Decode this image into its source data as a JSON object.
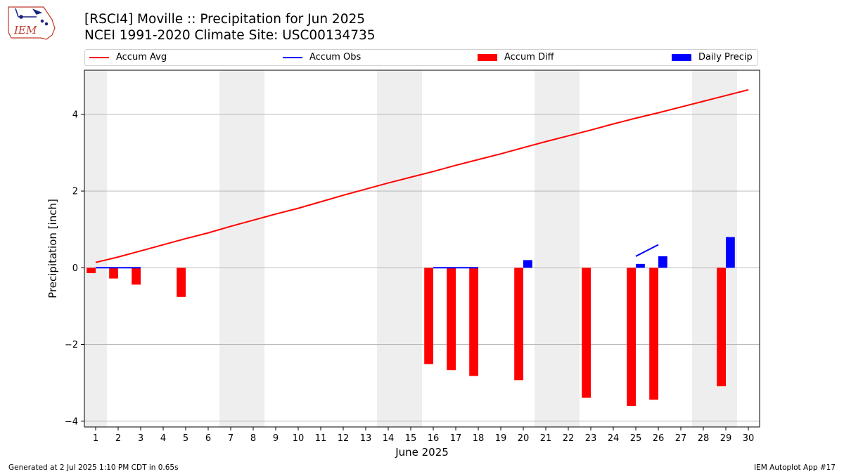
{
  "logo": {
    "text": "IEM"
  },
  "title_line1": "[RSCI4] Moville :: Precipitation for Jun 2025",
  "title_line2": "NCEI 1991-2020 Climate Site: USC00134735",
  "legend": [
    {
      "label": "Accum Avg",
      "kind": "line",
      "color": "#ff0000"
    },
    {
      "label": "Accum Obs",
      "kind": "line",
      "color": "#0000ff"
    },
    {
      "label": "Accum Diff",
      "kind": "bar",
      "color": "#ff0000"
    },
    {
      "label": "Daily Precip",
      "kind": "bar",
      "color": "#0000ff"
    }
  ],
  "footer_left": "Generated at 2 Jul 2025 1:10 PM CDT in 0.65s",
  "footer_right": "IEM Autoplot App #17",
  "chart_data": {
    "type": "bar",
    "xlabel": "June 2025",
    "ylabel": "Precipitation [inch]",
    "xlim": [
      0.5,
      30.5
    ],
    "ylim": [
      -4.15,
      5.15
    ],
    "yticks": [
      -4,
      -2,
      0,
      2,
      4
    ],
    "ytick_labels": [
      "−4",
      "−2",
      "0",
      "2",
      "4"
    ],
    "days": [
      1,
      2,
      3,
      4,
      5,
      6,
      7,
      8,
      9,
      10,
      11,
      12,
      13,
      14,
      15,
      16,
      17,
      18,
      19,
      20,
      21,
      22,
      23,
      24,
      25,
      26,
      27,
      28,
      29,
      30
    ],
    "weekend_days": [
      1,
      7,
      8,
      14,
      15,
      21,
      22,
      28,
      29
    ],
    "grid": true,
    "accum_avg": [
      0.14,
      0.28,
      0.44,
      0.6,
      0.76,
      0.91,
      1.08,
      1.24,
      1.4,
      1.55,
      1.72,
      1.89,
      2.05,
      2.21,
      2.36,
      2.51,
      2.67,
      2.82,
      2.97,
      3.13,
      3.29,
      3.44,
      3.59,
      3.75,
      3.9,
      4.04,
      4.19,
      4.34,
      4.49,
      4.64
    ],
    "accum_obs": [
      [
        [
          1,
          0.0
        ],
        [
          2,
          0.0
        ],
        [
          3,
          0.0
        ]
      ],
      [
        [
          16,
          0.0
        ],
        [
          17,
          0.0
        ],
        [
          18,
          0.0
        ]
      ],
      [
        [
          25,
          0.3
        ],
        [
          26,
          0.6
        ]
      ]
    ],
    "accum_diff": [
      {
        "day": 1,
        "value": -0.14
      },
      {
        "day": 2,
        "value": -0.28
      },
      {
        "day": 3,
        "value": -0.44
      },
      {
        "day": 5,
        "value": -0.76
      },
      {
        "day": 16,
        "value": -2.51
      },
      {
        "day": 17,
        "value": -2.67
      },
      {
        "day": 18,
        "value": -2.82
      },
      {
        "day": 20,
        "value": -2.93
      },
      {
        "day": 23,
        "value": -3.39
      },
      {
        "day": 25,
        "value": -3.6
      },
      {
        "day": 26,
        "value": -3.44
      },
      {
        "day": 29,
        "value": -3.09
      }
    ],
    "daily_precip": [
      {
        "day": 20,
        "value": 0.2
      },
      {
        "day": 25,
        "value": 0.1
      },
      {
        "day": 26,
        "value": 0.3
      },
      {
        "day": 29,
        "value": 0.8
      }
    ]
  }
}
